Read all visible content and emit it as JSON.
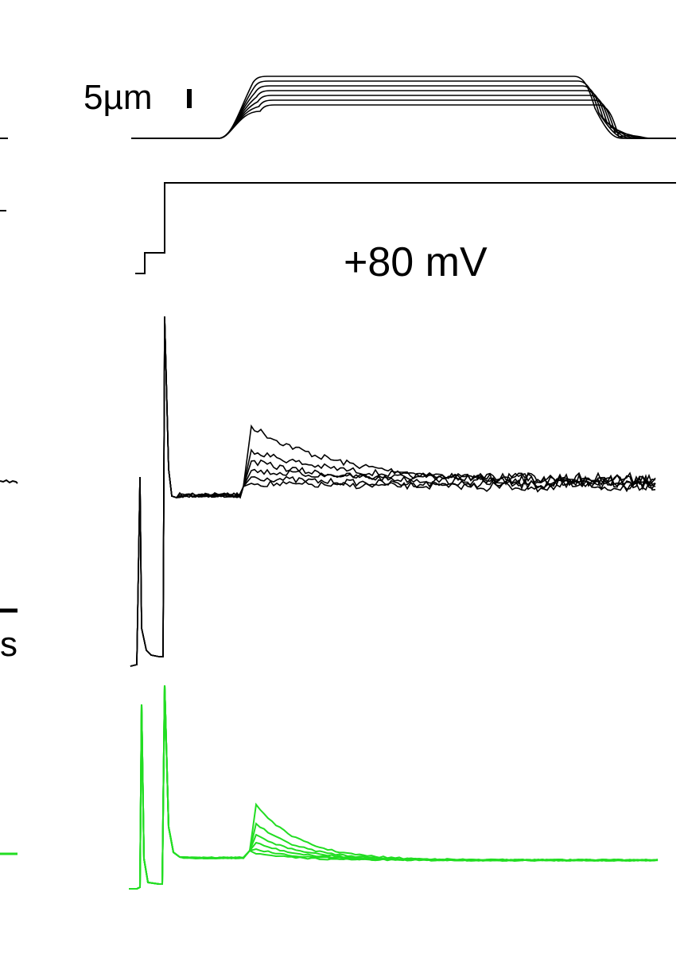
{
  "labels": {
    "displacement_scale": "5µm",
    "voltage_step": "+80 mV",
    "time_scale_unit": "s"
  },
  "colors": {
    "trace": "#000000",
    "fluorescence": "#22dd22"
  },
  "figure": {
    "displacement_steps": 7,
    "current_sweeps": 6,
    "fluorescence_sweeps": 6
  }
}
